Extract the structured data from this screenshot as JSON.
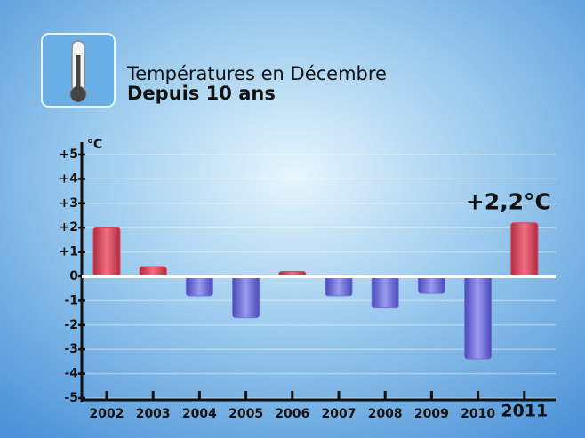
{
  "chart_data": {
    "type": "bar",
    "title": "Températures en Décembre",
    "subtitle": "Depuis 10 ans",
    "y_label": "°C",
    "categories": [
      "2002",
      "2003",
      "2004",
      "2005",
      "2006",
      "2007",
      "2008",
      "2009",
      "2010",
      "2011"
    ],
    "values": [
      2.0,
      0.4,
      -0.8,
      -1.7,
      0.2,
      -0.8,
      -1.3,
      -0.7,
      -3.4,
      2.2
    ],
    "value_labels": [
      null,
      null,
      null,
      null,
      null,
      null,
      null,
      null,
      null,
      "+2,2°C"
    ],
    "color_positive": "#d9465a",
    "color_negative": "#7272dc",
    "ylim": [
      -5,
      5
    ],
    "yticks": [
      {
        "value": 5,
        "label": "+5"
      },
      {
        "value": 4,
        "label": "+4"
      },
      {
        "value": 3,
        "label": "+3"
      },
      {
        "value": 2,
        "label": "+2"
      },
      {
        "value": 1,
        "label": "+1"
      },
      0,
      -1,
      -2,
      -3,
      -4,
      -5
    ],
    "grid": true
  }
}
